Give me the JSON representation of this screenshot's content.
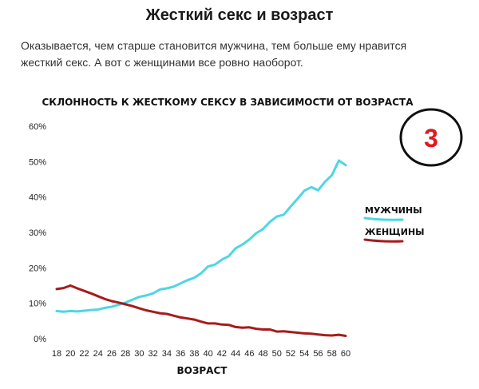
{
  "article": {
    "title": "Жесткий секс и возраст",
    "lead": "Оказывается, чем старше становится мужчина, тем больше ему нравится жесткий секс. А вот с женщинами все ровно наоборот."
  },
  "badge": {
    "number": "3",
    "color": "#e0191f"
  },
  "chart_data": {
    "type": "line",
    "title": "СКЛОННОСТЬ К ЖЕСТКОМУ СЕКСУ В ЗАВИСИМОСТИ ОТ ВОЗРАСТА",
    "xlabel": "ВОЗРАСТ",
    "ylabel": "",
    "xlim": [
      18,
      60
    ],
    "ylim": [
      0,
      60
    ],
    "grid": false,
    "legend_position": "right",
    "x_ticks": [
      18,
      20,
      22,
      24,
      26,
      28,
      30,
      32,
      34,
      36,
      38,
      40,
      42,
      44,
      46,
      48,
      50,
      52,
      54,
      56,
      58,
      60
    ],
    "x_tick_labels": [
      "18",
      "20",
      "22",
      "24",
      "26",
      "28",
      "30",
      "32",
      "34",
      "36",
      "38",
      "40",
      "42",
      "44",
      "46",
      "48",
      "50",
      "52",
      "54",
      "56",
      "58",
      "60"
    ],
    "y_ticks": [
      0,
      10,
      20,
      30,
      40,
      50,
      60
    ],
    "y_tick_labels": [
      "0%",
      "10%",
      "20%",
      "30%",
      "40%",
      "50%",
      "60%"
    ],
    "series": [
      {
        "name": "МУЖЧИНЫ",
        "color": "#4fd6e3",
        "x": [
          18,
          19,
          20,
          21,
          22,
          23,
          24,
          25,
          26,
          27,
          28,
          29,
          30,
          31,
          32,
          33,
          34,
          35,
          36,
          37,
          38,
          39,
          40,
          41,
          42,
          43,
          44,
          45,
          46,
          47,
          48,
          49,
          50,
          51,
          52,
          53,
          54,
          55,
          56,
          57,
          58,
          59,
          60
        ],
        "values": [
          7.8,
          7.6,
          7.8,
          7.7,
          7.9,
          8.1,
          8.2,
          8.7,
          9.0,
          9.6,
          10.2,
          11.0,
          11.8,
          12.2,
          12.8,
          13.9,
          14.2,
          14.7,
          15.6,
          16.5,
          17.2,
          18.5,
          20.4,
          20.9,
          22.3,
          23.3,
          25.5,
          26.6,
          28.0,
          29.8,
          31.0,
          33.0,
          34.5,
          35.0,
          37.3,
          39.5,
          41.8,
          42.8,
          41.9,
          44.3,
          46.2,
          50.3,
          49.0
        ]
      },
      {
        "name": "ЖЕНЩИНЫ",
        "color": "#a61c1c",
        "x": [
          18,
          19,
          20,
          21,
          22,
          23,
          24,
          25,
          26,
          27,
          28,
          29,
          30,
          31,
          32,
          33,
          34,
          35,
          36,
          37,
          38,
          39,
          40,
          41,
          42,
          43,
          44,
          45,
          46,
          47,
          48,
          49,
          50,
          51,
          52,
          53,
          54,
          55,
          56,
          57,
          58,
          59,
          60
        ],
        "values": [
          14.0,
          14.3,
          15.0,
          14.2,
          13.5,
          12.8,
          12.0,
          11.2,
          10.6,
          10.2,
          9.7,
          9.2,
          8.6,
          8.0,
          7.6,
          7.2,
          7.0,
          6.5,
          6.0,
          5.7,
          5.4,
          4.8,
          4.3,
          4.3,
          4.0,
          3.9,
          3.3,
          3.1,
          3.2,
          2.8,
          2.6,
          2.6,
          2.0,
          2.1,
          1.9,
          1.7,
          1.5,
          1.4,
          1.2,
          1.0,
          0.9,
          1.1,
          0.8
        ]
      }
    ]
  }
}
